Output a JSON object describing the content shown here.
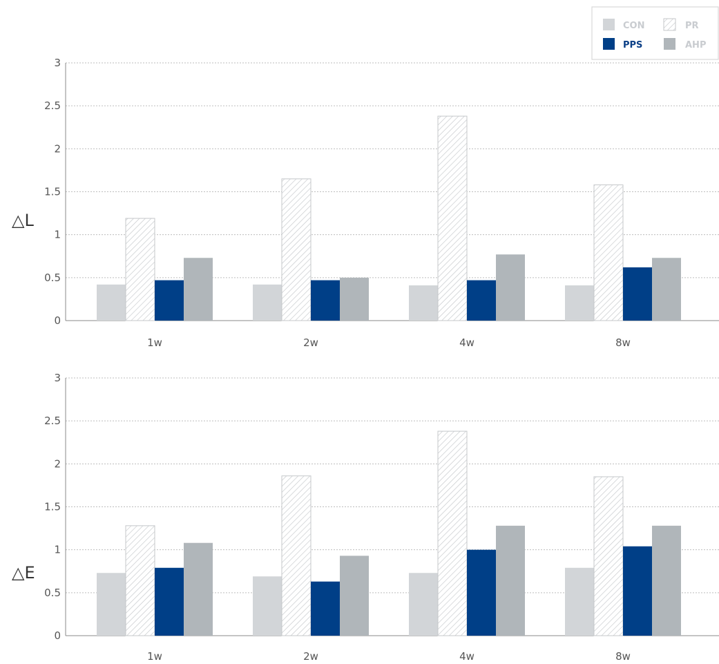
{
  "legend": {
    "position": "top-right",
    "items": [
      {
        "key": "con",
        "label": "CON",
        "text_color": "#c9ccd0"
      },
      {
        "key": "pr",
        "label": "PR",
        "text_color": "#c9ccd0"
      },
      {
        "key": "pps",
        "label": "PPS",
        "text_color": "#0b3f86"
      },
      {
        "key": "ahp",
        "label": "AHP",
        "text_color": "#c9ccd0"
      }
    ]
  },
  "colors": {
    "con": "#d2d5d8",
    "pr_stroke": "#c4c7ca",
    "pps": "#003f87",
    "ahp": "#b0b6ba",
    "grid": "#bdbdbd",
    "axis": "#888888"
  },
  "chart_data": [
    {
      "type": "bar",
      "ylabel": "△L",
      "categories": [
        "1w",
        "2w",
        "4w",
        "8w"
      ],
      "ylim": [
        0,
        3
      ],
      "yticks": [
        "0",
        "0.5",
        "1",
        "1.5",
        "2",
        "2.5",
        "3"
      ],
      "grid": true,
      "series": [
        {
          "name": "CON",
          "key": "con",
          "values": [
            0.42,
            0.42,
            0.41,
            0.41
          ]
        },
        {
          "name": "PR",
          "key": "pr",
          "values": [
            1.19,
            1.65,
            2.38,
            1.58
          ]
        },
        {
          "name": "PPS",
          "key": "pps",
          "values": [
            0.47,
            0.47,
            0.47,
            0.62
          ]
        },
        {
          "name": "AHP",
          "key": "ahp",
          "values": [
            0.73,
            0.5,
            0.77,
            0.73
          ]
        }
      ]
    },
    {
      "type": "bar",
      "ylabel": "△E",
      "categories": [
        "1w",
        "2w",
        "4w",
        "8w"
      ],
      "ylim": [
        0,
        3
      ],
      "yticks": [
        "0",
        "0.5",
        "1",
        "1.5",
        "2",
        "2.5",
        "3"
      ],
      "grid": true,
      "series": [
        {
          "name": "CON",
          "key": "con",
          "values": [
            0.73,
            0.69,
            0.73,
            0.79
          ]
        },
        {
          "name": "PR",
          "key": "pr",
          "values": [
            1.28,
            1.86,
            2.38,
            1.85
          ]
        },
        {
          "name": "PPS",
          "key": "pps",
          "values": [
            0.79,
            0.63,
            1.0,
            1.04
          ]
        },
        {
          "name": "AHP",
          "key": "ahp",
          "values": [
            1.08,
            0.93,
            1.28,
            1.28
          ]
        }
      ]
    }
  ]
}
